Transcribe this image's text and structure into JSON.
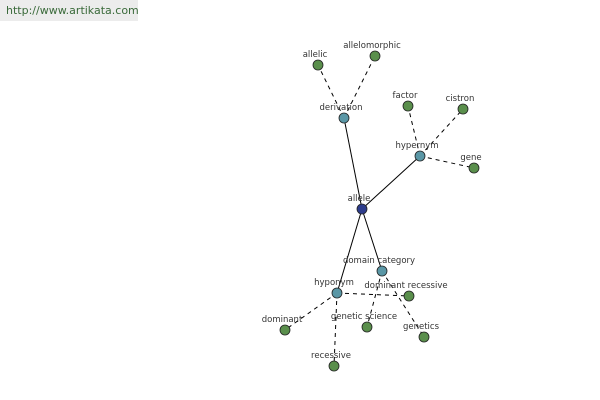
{
  "header": {
    "url": "http://www.artikata.com"
  },
  "nodes": [
    {
      "label": "allele"
    },
    {
      "label": "derivation"
    },
    {
      "label": "allelic"
    },
    {
      "label": "allelomorphic"
    },
    {
      "label": "hypernym"
    },
    {
      "label": "factor"
    },
    {
      "label": "cistron"
    },
    {
      "label": "gene"
    },
    {
      "label": "domain category"
    },
    {
      "label": "hyponym"
    },
    {
      "label": "dominant recessive"
    },
    {
      "label": "genetic science"
    },
    {
      "label": "genetics"
    },
    {
      "label": "dominant"
    },
    {
      "label": "recessive"
    }
  ]
}
